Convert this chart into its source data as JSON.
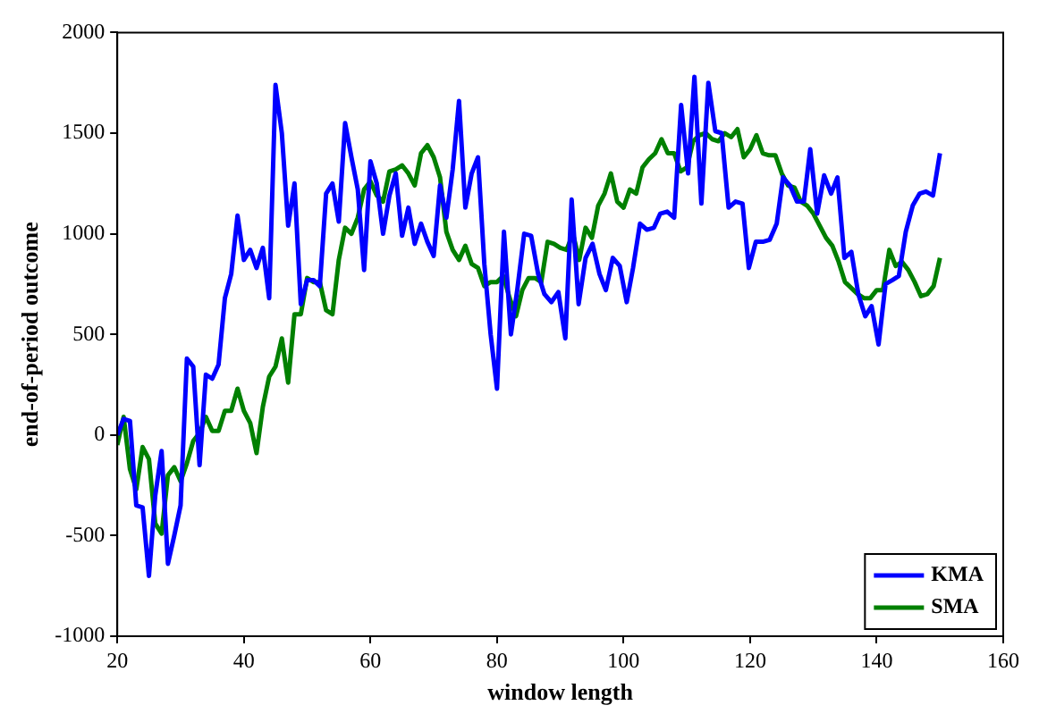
{
  "chart_data": {
    "type": "line",
    "xlabel": "window length",
    "ylabel": "end-of-period outcome",
    "xlim": [
      20,
      160
    ],
    "xticks": [
      20,
      40,
      60,
      80,
      100,
      120,
      140,
      160
    ],
    "ylim": [
      -1000,
      2000
    ],
    "yticks": [
      -1000,
      -500,
      0,
      500,
      1000,
      1500,
      2000
    ],
    "grid": false,
    "legend": "bottom right",
    "line_style": "solid",
    "marker": "none",
    "series": [
      {
        "name": "KMA",
        "color": "#0000ff",
        "x": [
          20,
          21,
          22,
          23,
          24,
          25,
          26,
          27,
          28,
          29,
          30,
          31,
          32,
          33,
          34,
          35,
          36,
          37,
          38,
          39,
          40,
          41,
          42,
          43,
          44,
          45,
          46,
          47,
          48,
          49,
          50,
          51,
          52,
          53,
          54,
          55,
          56,
          57,
          58,
          59,
          60,
          61,
          62,
          63,
          64,
          65,
          66,
          67,
          68,
          69,
          70,
          71,
          72,
          73,
          74,
          75,
          76,
          77,
          78,
          79,
          80,
          81.1,
          82.2,
          83.2,
          84.3,
          85.4,
          86.5,
          87.5,
          88.6,
          89.7,
          90.8,
          91.8,
          92.9,
          94,
          95.1,
          96.2,
          97.2,
          98.3,
          99.4,
          100.5,
          101.5,
          102.6,
          103.7,
          104.8,
          105.8,
          106.9,
          108,
          109.1,
          110.2,
          111.2,
          112.3,
          113.4,
          114.5,
          115.5,
          116.6,
          117.7,
          118.8,
          119.8,
          120.9,
          122,
          123.1,
          124.2,
          125.2,
          126.3,
          127.4,
          128.5,
          129.5,
          130.6,
          131.7,
          132.8,
          133.8,
          134.9,
          136,
          137.1,
          138.2,
          139.2,
          140.3,
          141.4,
          142.5,
          143.5,
          144.6,
          145.7,
          146.8,
          147.8,
          148.9,
          150
        ],
        "values": [
          0,
          80,
          70,
          -350,
          -360,
          -700,
          -300,
          -80,
          -640,
          -500,
          -350,
          380,
          340,
          -150,
          300,
          280,
          350,
          680,
          800,
          1090,
          870,
          920,
          830,
          930,
          680,
          1740,
          1500,
          1040,
          1250,
          650,
          770,
          770,
          740,
          1200,
          1250,
          1060,
          1550,
          1380,
          1220,
          820,
          1360,
          1250,
          1000,
          1190,
          1300,
          990,
          1130,
          950,
          1050,
          960,
          890,
          1240,
          1080,
          1320,
          1660,
          1130,
          1300,
          1380,
          850,
          500,
          230,
          1010,
          500,
          720,
          1000,
          990,
          800,
          700,
          660,
          710,
          480,
          1170,
          650,
          880,
          950,
          800,
          720,
          880,
          840,
          660,
          830,
          1050,
          1020,
          1030,
          1100,
          1110,
          1080,
          1640,
          1300,
          1780,
          1150,
          1750,
          1510,
          1500,
          1130,
          1160,
          1150,
          830,
          960,
          960,
          970,
          1050,
          1280,
          1240,
          1160,
          1160,
          1420,
          1100,
          1290,
          1200,
          1280,
          880,
          910,
          700,
          590,
          640,
          450,
          750,
          770,
          790,
          1010,
          1140,
          1200,
          1210,
          1190,
          1400
        ]
      },
      {
        "name": "SMA",
        "color": "#008000",
        "x": [
          20,
          21,
          22,
          23,
          24,
          25,
          26,
          27,
          28,
          29,
          30,
          31,
          32,
          33,
          34,
          35,
          36,
          37,
          38,
          39,
          40,
          41,
          42,
          43,
          44,
          45,
          46,
          47,
          48,
          49,
          50,
          51,
          52,
          53,
          54,
          55,
          56,
          57,
          58,
          59,
          60,
          61,
          62,
          63,
          64,
          65,
          66,
          67,
          68,
          69,
          70,
          71,
          72,
          73,
          74,
          75,
          76,
          77,
          78,
          79,
          80,
          81,
          82,
          83,
          84,
          85,
          86,
          87,
          88,
          89,
          90,
          91,
          92,
          93,
          94,
          95,
          96,
          97,
          98,
          99,
          100,
          101,
          102,
          103,
          104,
          105,
          106,
          107,
          108,
          109,
          110,
          111,
          112,
          113,
          114,
          115,
          116,
          117,
          118,
          119,
          120,
          121,
          122,
          123,
          124,
          125,
          126,
          127,
          128,
          129,
          130,
          131,
          132,
          133,
          134,
          135,
          136,
          137,
          138,
          139,
          140,
          141,
          142,
          143,
          144,
          145,
          146,
          147,
          148,
          149,
          150
        ],
        "values": [
          -50,
          90,
          -170,
          -270,
          -60,
          -120,
          -440,
          -490,
          -200,
          -160,
          -230,
          -140,
          -30,
          10,
          90,
          20,
          20,
          120,
          120,
          230,
          120,
          60,
          -90,
          140,
          290,
          340,
          480,
          260,
          600,
          600,
          780,
          760,
          760,
          620,
          600,
          870,
          1030,
          1000,
          1080,
          1220,
          1260,
          1190,
          1160,
          1310,
          1320,
          1340,
          1300,
          1240,
          1400,
          1440,
          1380,
          1280,
          1010,
          920,
          870,
          940,
          850,
          830,
          740,
          760,
          760,
          790,
          680,
          590,
          720,
          780,
          780,
          760,
          960,
          950,
          930,
          920,
          1000,
          870,
          1030,
          980,
          1140,
          1200,
          1300,
          1160,
          1130,
          1220,
          1200,
          1330,
          1370,
          1400,
          1470,
          1400,
          1400,
          1310,
          1330,
          1460,
          1490,
          1500,
          1470,
          1460,
          1500,
          1480,
          1520,
          1380,
          1420,
          1490,
          1400,
          1390,
          1390,
          1300,
          1240,
          1230,
          1160,
          1140,
          1100,
          1040,
          980,
          940,
          860,
          760,
          730,
          700,
          680,
          680,
          720,
          720,
          920,
          840,
          860,
          820,
          760,
          690,
          700,
          740,
          880
        ]
      }
    ]
  }
}
